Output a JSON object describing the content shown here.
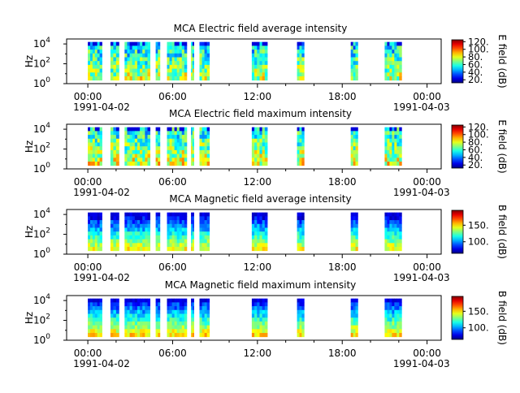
{
  "chart_data": [
    {
      "type": "heatmap",
      "title": "MCA  Electric field average intensity",
      "ylabel": "Hz",
      "colorbar_label": "E field (dB)",
      "colorbar_ticks": [
        "20.",
        "40.",
        "60.",
        "80.",
        "100.",
        "120."
      ],
      "clim": [
        12,
        125
      ],
      "y_scale": "log",
      "y_tick_exponents": [
        "0",
        "2",
        "4"
      ],
      "ylim_log10": [
        0,
        4.5
      ],
      "x_ticks": [
        "00:00",
        "06:00",
        "12:00",
        "18:00",
        "00:00"
      ],
      "x_date_labels": [
        "1991-04-02",
        "1991-04-03"
      ],
      "xlim_hours": [
        -1.5,
        25
      ],
      "passes_hours": [
        [
          0.0,
          1.0
        ],
        [
          1.6,
          2.2
        ],
        [
          2.6,
          4.4
        ],
        [
          4.8,
          5.1
        ],
        [
          5.6,
          7.0
        ],
        [
          7.3,
          7.5
        ],
        [
          7.9,
          8.6
        ],
        [
          11.6,
          12.7
        ],
        [
          14.8,
          15.3
        ],
        [
          18.6,
          19.1
        ],
        [
          21.0,
          22.2
        ]
      ],
      "intensity_mean_db": 70
    },
    {
      "type": "heatmap",
      "title": "MCA  Electric field maximum intensity",
      "ylabel": "Hz",
      "colorbar_label": "E field (dB)",
      "colorbar_ticks": [
        "20.",
        "40.",
        "60.",
        "80.",
        "100.",
        "120."
      ],
      "clim": [
        12,
        125
      ],
      "y_scale": "log",
      "y_tick_exponents": [
        "0",
        "2",
        "4"
      ],
      "ylim_log10": [
        0,
        4.5
      ],
      "x_ticks": [
        "00:00",
        "06:00",
        "12:00",
        "18:00",
        "00:00"
      ],
      "x_date_labels": [
        "1991-04-02",
        "1991-04-03"
      ],
      "xlim_hours": [
        -1.5,
        25
      ],
      "passes_hours": [
        [
          0.0,
          1.0
        ],
        [
          1.6,
          2.2
        ],
        [
          2.6,
          4.4
        ],
        [
          4.8,
          5.1
        ],
        [
          5.6,
          7.0
        ],
        [
          7.3,
          7.5
        ],
        [
          7.9,
          8.6
        ],
        [
          11.6,
          12.7
        ],
        [
          14.8,
          15.3
        ],
        [
          18.6,
          19.1
        ],
        [
          21.0,
          22.2
        ]
      ],
      "intensity_mean_db": 75
    },
    {
      "type": "heatmap",
      "title": "MCA  Magnetic field average intensity",
      "ylabel": "Hz",
      "colorbar_label": "B field (dB)",
      "colorbar_ticks": [
        "100.",
        "150."
      ],
      "clim": [
        65,
        195
      ],
      "y_scale": "log",
      "y_tick_exponents": [
        "0",
        "2",
        "4"
      ],
      "ylim_log10": [
        0,
        4.5
      ],
      "x_ticks": [
        "00:00",
        "06:00",
        "12:00",
        "18:00",
        "00:00"
      ],
      "x_date_labels": [
        "1991-04-02",
        "1991-04-03"
      ],
      "xlim_hours": [
        -1.5,
        25
      ],
      "passes_hours": [
        [
          0.0,
          1.0
        ],
        [
          1.6,
          2.2
        ],
        [
          2.6,
          4.4
        ],
        [
          4.8,
          5.1
        ],
        [
          5.6,
          7.0
        ],
        [
          7.3,
          7.5
        ],
        [
          7.9,
          8.6
        ],
        [
          11.6,
          12.7
        ],
        [
          14.8,
          15.3
        ],
        [
          18.6,
          19.1
        ],
        [
          21.0,
          22.2
        ]
      ],
      "intensity_mean_db": 130
    },
    {
      "type": "heatmap",
      "title": "MCA  Magnetic field maximum intensity",
      "ylabel": "Hz",
      "colorbar_label": "B field (dB)",
      "colorbar_ticks": [
        "100.",
        "150."
      ],
      "clim": [
        65,
        195
      ],
      "y_scale": "log",
      "y_tick_exponents": [
        "0",
        "2",
        "4"
      ],
      "ylim_log10": [
        0,
        4.5
      ],
      "x_ticks": [
        "00:00",
        "06:00",
        "12:00",
        "18:00",
        "00:00"
      ],
      "x_date_labels": [
        "1991-04-02",
        "1991-04-03"
      ],
      "xlim_hours": [
        -1.5,
        25
      ],
      "passes_hours": [
        [
          0.0,
          1.0
        ],
        [
          1.6,
          2.2
        ],
        [
          2.6,
          4.4
        ],
        [
          4.8,
          5.1
        ],
        [
          5.6,
          7.0
        ],
        [
          7.3,
          7.5
        ],
        [
          7.9,
          8.6
        ],
        [
          11.6,
          12.7
        ],
        [
          14.8,
          15.3
        ],
        [
          18.6,
          19.1
        ],
        [
          21.0,
          22.2
        ]
      ],
      "intensity_mean_db": 135
    }
  ]
}
